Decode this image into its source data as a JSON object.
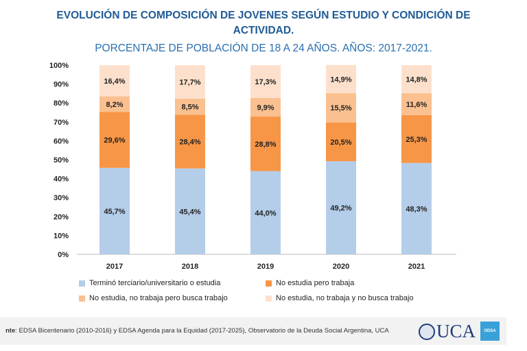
{
  "chart_data": {
    "type": "bar",
    "stacked": true,
    "title": "EVOLUCIÓN DE COMPOSICIÓN DE JOVENES SEGÚN ESTUDIO Y CONDICIÓN DE ACTIVIDAD.",
    "subtitle": "PORCENTAJE DE POBLACIÓN DE 18 A 24 AÑOS. AÑOS: 2017-2021.",
    "categories": [
      "2017",
      "2018",
      "2019",
      "2020",
      "2021"
    ],
    "ylim": [
      0,
      100
    ],
    "yticks": [
      "0%",
      "10%",
      "20%",
      "30%",
      "40%",
      "50%",
      "60%",
      "70%",
      "80%",
      "90%",
      "100%"
    ],
    "series": [
      {
        "name": "Terminó terciario/universitario o estudia",
        "color": "#b4cde9",
        "values": [
          45.7,
          45.4,
          44.0,
          49.2,
          48.3
        ],
        "labels": [
          "45,7%",
          "45,4%",
          "44,0%",
          "49,2%",
          "48,3%"
        ]
      },
      {
        "name": "No estudia pero trabaja",
        "color": "#f79646",
        "values": [
          29.6,
          28.4,
          28.8,
          20.5,
          25.3
        ],
        "labels": [
          "29,6%",
          "28,4%",
          "28,8%",
          "20,5%",
          "25,3%"
        ]
      },
      {
        "name": "No estudia, no trabaja pero busca trabajo",
        "color": "#fac08f",
        "values": [
          8.2,
          8.5,
          9.9,
          15.5,
          11.6
        ],
        "labels": [
          "8,2%",
          "8,5%",
          "9,9%",
          "15,5%",
          "11,6%"
        ]
      },
      {
        "name": "No estudia, no trabaja y no busca trabajo",
        "color": "#fde0cc",
        "values": [
          16.4,
          17.7,
          17.3,
          14.9,
          14.8
        ],
        "labels": [
          "16,4%",
          "17,7%",
          "17,3%",
          "14,9%",
          "14,8%"
        ]
      }
    ],
    "legend": "bottom"
  },
  "footer": {
    "source_prefix": "nte",
    "source": ": EDSA Bicentenario (2010-2016) y EDSA Agenda para la Equidad (2017-2025), Observatorio de la Deuda Social Argentina, UCA",
    "logo": "UCA",
    "logo2": "ODSA"
  }
}
